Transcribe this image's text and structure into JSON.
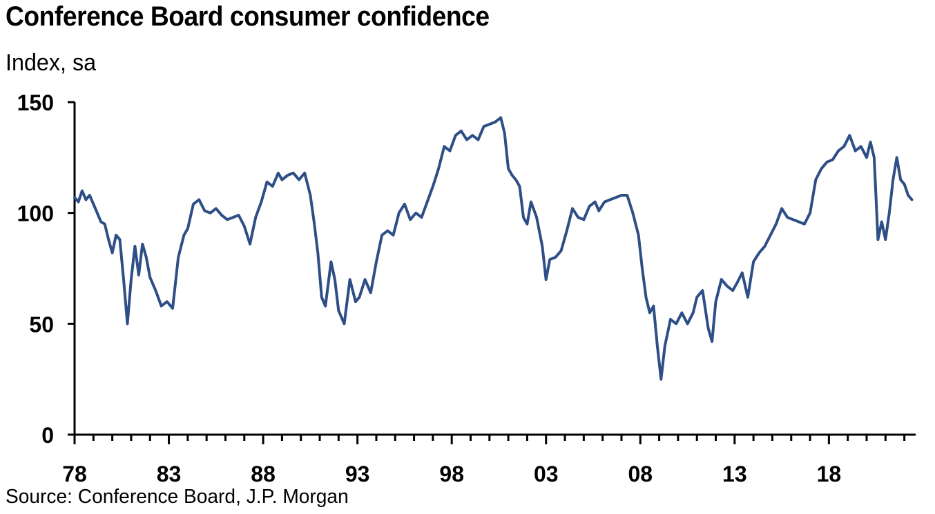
{
  "title": "Conference Board consumer confidence",
  "subtitle": "Index, sa",
  "source": "Source: Conference Board, J.P. Morgan",
  "colors": {
    "line": "#2e4e86",
    "axis": "#000000"
  },
  "chart_data": {
    "type": "line",
    "title": "Conference Board consumer confidence",
    "ylabel": "Index, sa",
    "xlabel": "",
    "ylim": [
      0,
      150
    ],
    "xlim": [
      1978,
      2022.6
    ],
    "yticks": [
      0,
      50,
      100,
      150
    ],
    "ytick_labels": [
      "0",
      "50",
      "100",
      "150"
    ],
    "xticks": [
      1978,
      1983,
      1988,
      1993,
      1998,
      2003,
      2008,
      2013,
      2018
    ],
    "xtick_labels": [
      "78",
      "83",
      "88",
      "93",
      "98",
      "03",
      "08",
      "13",
      "18"
    ],
    "grid": false,
    "series": [
      {
        "x": [
          1978.0,
          1978.2,
          1978.4,
          1978.6,
          1978.8,
          1979.0,
          1979.2,
          1979.4,
          1979.6,
          1979.8,
          1980.0,
          1980.2,
          1980.4,
          1980.6,
          1980.8,
          1981.0,
          1981.2,
          1981.4,
          1981.6,
          1981.8,
          1982.0,
          1982.3,
          1982.6,
          1982.9,
          1983.2,
          1983.5,
          1983.8,
          1984.0,
          1984.3,
          1984.6,
          1984.9,
          1985.2,
          1985.5,
          1985.8,
          1986.1,
          1986.4,
          1986.7,
          1987.0,
          1987.3,
          1987.6,
          1987.9,
          1988.2,
          1988.5,
          1988.8,
          1989.0,
          1989.3,
          1989.6,
          1989.9,
          1990.2,
          1990.5,
          1990.7,
          1990.9,
          1991.1,
          1991.3,
          1991.6,
          1991.8,
          1992.0,
          1992.3,
          1992.6,
          1992.9,
          1993.1,
          1993.4,
          1993.7,
          1994.0,
          1994.3,
          1994.6,
          1994.9,
          1995.2,
          1995.5,
          1995.8,
          1996.1,
          1996.4,
          1996.7,
          1997.0,
          1997.3,
          1997.6,
          1997.9,
          1998.2,
          1998.5,
          1998.8,
          1999.1,
          1999.4,
          1999.7,
          2000.0,
          2000.3,
          2000.6,
          2000.8,
          2001.0,
          2001.2,
          2001.4,
          2001.6,
          2001.8,
          2002.0,
          2002.2,
          2002.5,
          2002.8,
          2003.0,
          2003.2,
          2003.5,
          2003.8,
          2004.1,
          2004.4,
          2004.7,
          2005.0,
          2005.3,
          2005.6,
          2005.8,
          2006.1,
          2006.4,
          2006.7,
          2007.0,
          2007.3,
          2007.6,
          2007.9,
          2008.1,
          2008.3,
          2008.5,
          2008.7,
          2008.9,
          2009.1,
          2009.3,
          2009.6,
          2009.9,
          2010.2,
          2010.5,
          2010.8,
          2011.0,
          2011.3,
          2011.6,
          2011.8,
          2012.0,
          2012.3,
          2012.6,
          2012.9,
          2013.1,
          2013.4,
          2013.7,
          2014.0,
          2014.3,
          2014.6,
          2014.9,
          2015.2,
          2015.5,
          2015.8,
          2016.1,
          2016.4,
          2016.7,
          2017.0,
          2017.3,
          2017.6,
          2017.9,
          2018.2,
          2018.5,
          2018.8,
          2019.1,
          2019.4,
          2019.7,
          2020.0,
          2020.2,
          2020.4,
          2020.6,
          2020.8,
          2021.0,
          2021.2,
          2021.4,
          2021.6,
          2021.8,
          2022.0,
          2022.2,
          2022.4
        ],
        "values": [
          107,
          105,
          110,
          106,
          108,
          104,
          100,
          96,
          95,
          88,
          82,
          90,
          88,
          70,
          50,
          70,
          85,
          72,
          86,
          80,
          71,
          65,
          58,
          60,
          57,
          80,
          90,
          93,
          104,
          106,
          101,
          100,
          102,
          99,
          97,
          98,
          99,
          94,
          86,
          98,
          105,
          114,
          112,
          118,
          115,
          117,
          118,
          115,
          118,
          108,
          96,
          82,
          62,
          58,
          78,
          70,
          56,
          50,
          70,
          60,
          62,
          70,
          64,
          78,
          90,
          92,
          90,
          100,
          104,
          97,
          100,
          98,
          105,
          112,
          120,
          130,
          128,
          135,
          137,
          133,
          135,
          133,
          139,
          140,
          141,
          143,
          136,
          120,
          117,
          115,
          112,
          98,
          95,
          105,
          98,
          85,
          70,
          79,
          80,
          83,
          92,
          102,
          98,
          97,
          103,
          105,
          101,
          105,
          106,
          107,
          108,
          108,
          100,
          90,
          75,
          62,
          55,
          58,
          40,
          25,
          40,
          52,
          50,
          55,
          50,
          55,
          62,
          65,
          48,
          42,
          60,
          70,
          67,
          65,
          68,
          73,
          62,
          78,
          82,
          85,
          90,
          95,
          102,
          98,
          97,
          96,
          95,
          100,
          115,
          120,
          123,
          124,
          128,
          130,
          135,
          128,
          130,
          125,
          132,
          125,
          88,
          96,
          88,
          100,
          115,
          125,
          115,
          113,
          108,
          106
        ]
      }
    ]
  }
}
